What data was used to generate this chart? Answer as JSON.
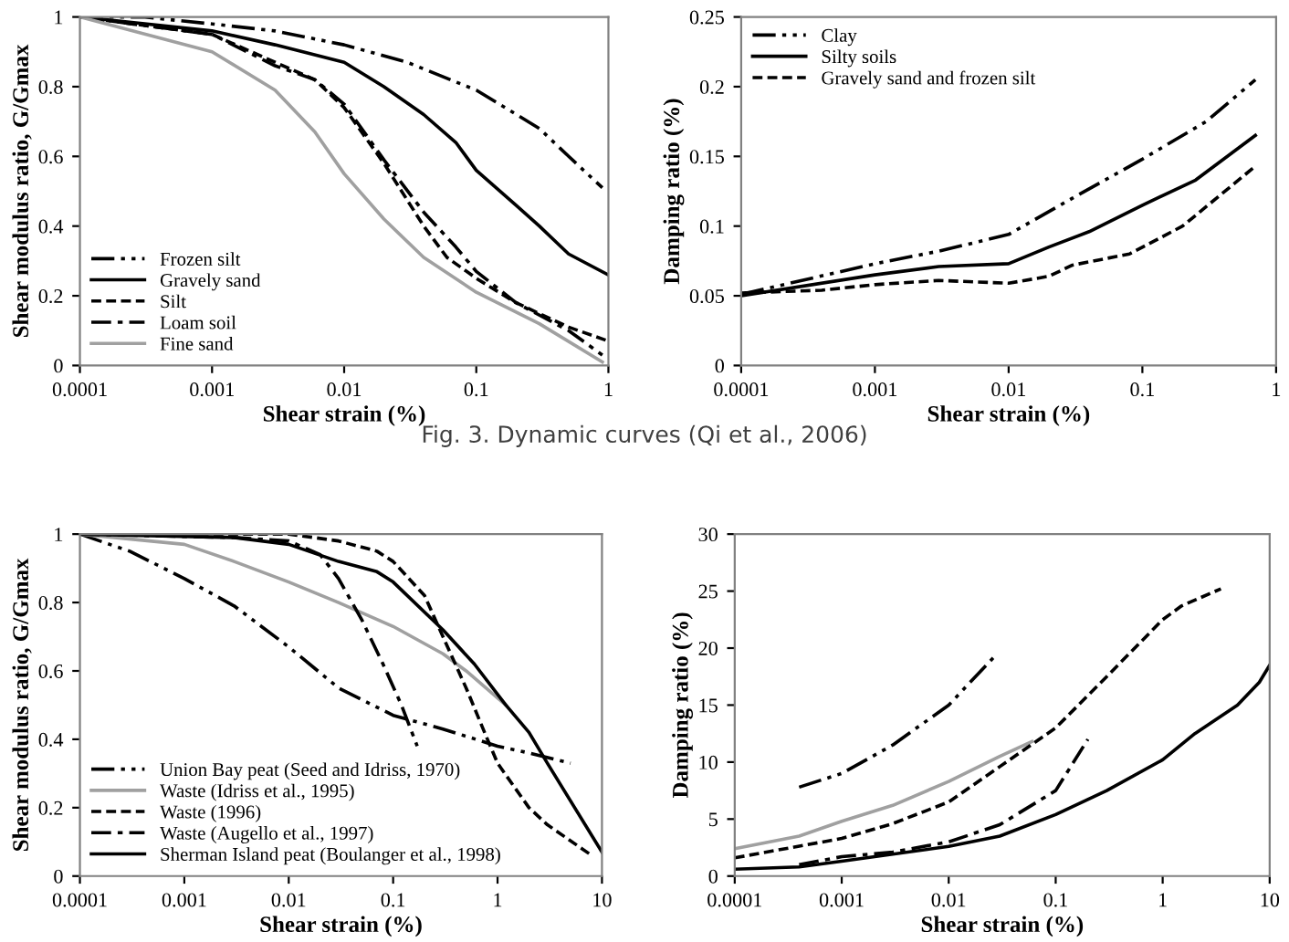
{
  "chart_data": [
    {
      "type": "line",
      "xlabel": "Shear strain (%)",
      "ylabel": "Shear modulus ratio, G/Gmax",
      "log": "x",
      "xlim": [
        0.0001,
        1
      ],
      "xticks": [
        0.0001,
        0.001,
        0.01,
        0.1,
        1
      ],
      "ylim": [
        0,
        1
      ],
      "yticks": [
        0,
        0.2,
        0.4,
        0.6,
        0.8,
        1
      ],
      "grid": false,
      "legend": "bottom left",
      "annotations": [
        "Fig. 3. Dynamic curves (Qi et al., 2006)"
      ],
      "series": [
        {
          "name": "Frozen silt",
          "color": "#000000",
          "line_style": "dashdotdot",
          "x": [
            0.0001,
            0.0003,
            0.001,
            0.003,
            0.01,
            0.03,
            0.1,
            0.3,
            0.5,
            0.9
          ],
          "values": [
            1,
            1,
            0.98,
            0.96,
            0.92,
            0.87,
            0.79,
            0.68,
            0.6,
            0.51
          ]
        },
        {
          "name": "Gravely sand",
          "color": "#000000",
          "line_style": "solid",
          "x": [
            0.0001,
            0.001,
            0.003,
            0.01,
            0.02,
            0.04,
            0.07,
            0.1,
            0.2,
            0.3,
            0.5,
            1
          ],
          "values": [
            1,
            0.96,
            0.92,
            0.87,
            0.8,
            0.72,
            0.64,
            0.56,
            0.46,
            0.4,
            0.32,
            0.26
          ]
        },
        {
          "name": "Silt",
          "color": "#000000",
          "line_style": "dashed",
          "x": [
            0.0001,
            0.001,
            0.003,
            0.006,
            0.01,
            0.02,
            0.04,
            0.06,
            0.1,
            0.2,
            0.5,
            1
          ],
          "values": [
            1,
            0.95,
            0.87,
            0.82,
            0.74,
            0.58,
            0.4,
            0.31,
            0.25,
            0.18,
            0.11,
            0.07
          ]
        },
        {
          "name": "Loam soil",
          "color": "#000000",
          "line_style": "dashdot",
          "x": [
            0.0001,
            0.001,
            0.003,
            0.006,
            0.01,
            0.02,
            0.04,
            0.07,
            0.1,
            0.2,
            0.5,
            0.9
          ],
          "values": [
            1,
            0.95,
            0.86,
            0.82,
            0.75,
            0.59,
            0.44,
            0.34,
            0.27,
            0.18,
            0.1,
            0.03
          ]
        },
        {
          "name": "Fine sand",
          "color": "#a0a0a0",
          "line_style": "solid",
          "x": [
            0.0001,
            0.001,
            0.003,
            0.006,
            0.01,
            0.02,
            0.04,
            0.1,
            0.3,
            0.9
          ],
          "values": [
            1,
            0.9,
            0.79,
            0.67,
            0.55,
            0.42,
            0.31,
            0.21,
            0.12,
            0.01
          ]
        }
      ]
    },
    {
      "type": "line",
      "xlabel": "Shear strain (%)",
      "ylabel": "Damping ratio (%)",
      "log": "x",
      "xlim": [
        0.0001,
        1
      ],
      "xticks": [
        0.0001,
        0.001,
        0.01,
        0.1,
        1
      ],
      "ylim": [
        0,
        0.25
      ],
      "yticks": [
        0,
        0.05,
        0.1,
        0.15,
        0.2,
        0.25
      ],
      "grid": false,
      "legend": "top left",
      "series": [
        {
          "name": "Clay",
          "color": "#000000",
          "line_style": "dashdotdot",
          "x": [
            0.0001,
            0.001,
            0.003,
            0.01,
            0.03,
            0.1,
            0.3,
            0.7
          ],
          "values": [
            0.051,
            0.073,
            0.082,
            0.094,
            0.12,
            0.148,
            0.175,
            0.205
          ]
        },
        {
          "name": "Silty soils",
          "color": "#000000",
          "line_style": "solid",
          "x": [
            0.0001,
            0.001,
            0.003,
            0.01,
            0.02,
            0.04,
            0.1,
            0.25,
            0.7
          ],
          "values": [
            0.05,
            0.065,
            0.071,
            0.073,
            0.085,
            0.096,
            0.115,
            0.133,
            0.165
          ]
        },
        {
          "name": "Gravely sand and frozen silt",
          "color": "#000000",
          "line_style": "dashed",
          "x": [
            0.0001,
            0.0004,
            0.001,
            0.003,
            0.01,
            0.02,
            0.03,
            0.08,
            0.2,
            0.7
          ],
          "values": [
            0.052,
            0.054,
            0.058,
            0.061,
            0.059,
            0.064,
            0.072,
            0.08,
            0.1,
            0.143
          ]
        }
      ]
    },
    {
      "type": "line",
      "xlabel": "Shear strain (%)",
      "ylabel": "Shear modulus ratio, G/Gmax",
      "log": "x",
      "xlim": [
        0.0001,
        10
      ],
      "xticks": [
        0.0001,
        0.001,
        0.01,
        0.1,
        1,
        10
      ],
      "ylim": [
        0,
        1
      ],
      "yticks": [
        0,
        0.2,
        0.4,
        0.6,
        0.8,
        1
      ],
      "grid": false,
      "legend": "bottom left",
      "series": [
        {
          "name": "Union Bay peat (Seed and Idriss, 1970)",
          "color": "#000000",
          "line_style": "dashdotdot",
          "x": [
            0.0001,
            0.0003,
            0.001,
            0.003,
            0.01,
            0.03,
            0.1,
            0.3,
            1,
            2,
            5
          ],
          "values": [
            1,
            0.95,
            0.87,
            0.79,
            0.67,
            0.55,
            0.47,
            0.43,
            0.38,
            0.36,
            0.33
          ]
        },
        {
          "name": "Waste (Idriss et al., 1995)",
          "color": "#a0a0a0",
          "line_style": "solid",
          "x": [
            0.0001,
            0.001,
            0.003,
            0.01,
            0.03,
            0.1,
            0.3,
            0.5,
            1.2
          ],
          "values": [
            1,
            0.97,
            0.92,
            0.86,
            0.8,
            0.73,
            0.65,
            0.6,
            0.5
          ]
        },
        {
          "name": "Waste (1996)",
          "color": "#000000",
          "line_style": "dashed",
          "x": [
            0.0001,
            0.01,
            0.03,
            0.07,
            0.1,
            0.2,
            0.3,
            0.5,
            0.8,
            1,
            2,
            3,
            8
          ],
          "values": [
            1,
            1,
            0.98,
            0.95,
            0.92,
            0.82,
            0.7,
            0.55,
            0.4,
            0.33,
            0.2,
            0.15,
            0.06
          ]
        },
        {
          "name": "Waste (Augello et al., 1997)",
          "color": "#000000",
          "line_style": "dashdot",
          "x": [
            0.0001,
            0.003,
            0.01,
            0.02,
            0.03,
            0.05,
            0.08,
            0.12,
            0.17
          ],
          "values": [
            1,
            0.99,
            0.98,
            0.94,
            0.87,
            0.75,
            0.62,
            0.5,
            0.38
          ]
        },
        {
          "name": "Sherman Island peat (Boulanger et al., 1998)",
          "color": "#000000",
          "line_style": "solid",
          "x": [
            0.0001,
            0.003,
            0.01,
            0.03,
            0.07,
            0.1,
            0.3,
            0.6,
            1.2,
            2,
            3,
            10
          ],
          "values": [
            1,
            0.99,
            0.97,
            0.92,
            0.89,
            0.86,
            0.72,
            0.62,
            0.5,
            0.42,
            0.33,
            0.07
          ]
        }
      ]
    },
    {
      "type": "line",
      "xlabel": "Shear strain (%)",
      "ylabel": "Damping ratio (%)",
      "log": "x",
      "xlim": [
        0.0001,
        10
      ],
      "xticks": [
        0.0001,
        0.001,
        0.01,
        0.1,
        1,
        10
      ],
      "ylim": [
        0,
        30
      ],
      "yticks": [
        0,
        5,
        10,
        15,
        20,
        25,
        30
      ],
      "grid": false,
      "series": [
        {
          "color": "#000000",
          "line_style": "dashdotdot",
          "x": [
            0.0004,
            0.001,
            0.003,
            0.01,
            0.027
          ],
          "values": [
            7.8,
            9,
            11.5,
            15,
            19.3
          ]
        },
        {
          "color": "#a0a0a0",
          "line_style": "solid",
          "x": [
            0.0001,
            0.0004,
            0.001,
            0.003,
            0.01,
            0.03,
            0.06
          ],
          "values": [
            2.4,
            3.5,
            4.8,
            6.2,
            8.3,
            10.5,
            11.8
          ]
        },
        {
          "color": "#000000",
          "line_style": "dashed",
          "x": [
            0.0001,
            0.001,
            0.003,
            0.01,
            0.03,
            0.1,
            0.3,
            1,
            1.5,
            3.5
          ],
          "values": [
            1.6,
            3.3,
            4.6,
            6.5,
            9.6,
            13,
            17.5,
            22.5,
            23.7,
            25.2
          ]
        },
        {
          "color": "#000000",
          "line_style": "dashdot",
          "x": [
            0.0004,
            0.001,
            0.003,
            0.01,
            0.03,
            0.1,
            0.2
          ],
          "values": [
            1,
            1.7,
            2.1,
            3,
            4.5,
            7.5,
            12
          ]
        },
        {
          "color": "#000000",
          "line_style": "solid",
          "x": [
            0.0001,
            0.0004,
            0.001,
            0.01,
            0.03,
            0.1,
            0.3,
            1,
            2,
            5,
            8,
            10
          ],
          "values": [
            0.6,
            0.8,
            1.3,
            2.6,
            3.5,
            5.4,
            7.5,
            10.2,
            12.5,
            15,
            17,
            18.5
          ]
        }
      ]
    }
  ]
}
